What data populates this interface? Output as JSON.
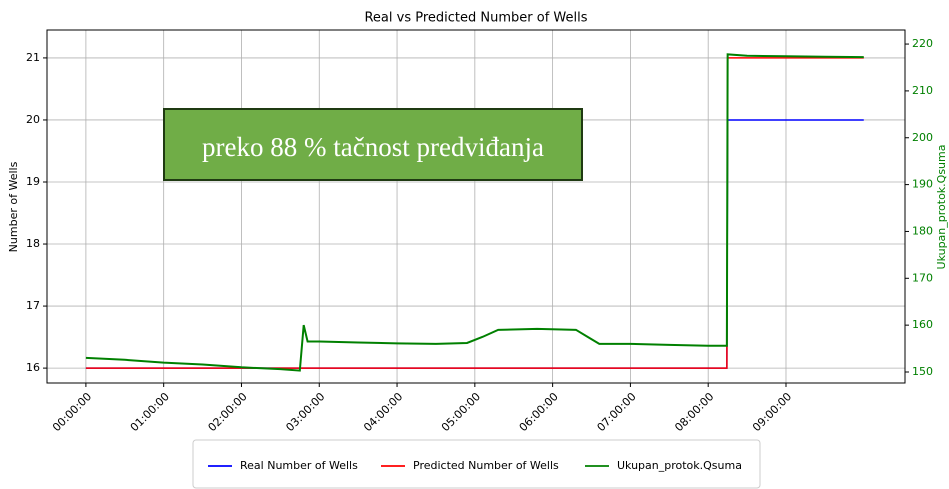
{
  "chart_data": {
    "type": "line",
    "title": "Real vs Predicted Number of Wells",
    "ylabel": "Number of Wells",
    "y2label": "Ukupan_protok.Qsuma",
    "annotation": "preko 88 % tačnost predviđanja",
    "x": [
      0,
      0.5,
      1,
      1.5,
      2,
      2.5,
      2.75,
      2.8,
      2.85,
      3,
      3.5,
      4,
      4.5,
      4.9,
      5.1,
      5.3,
      5.8,
      6.3,
      6.45,
      6.6,
      7,
      7.5,
      8,
      8.24,
      8.25,
      8.5,
      9,
      9.5,
      10
    ],
    "series": [
      {
        "name": "Real Number of Wells",
        "color": "#0000ff",
        "values": [
          16,
          16,
          16,
          16,
          16,
          16,
          16,
          16,
          16,
          16,
          16,
          16,
          16,
          16,
          16,
          16,
          16,
          16,
          16,
          16,
          16,
          16,
          16,
          16,
          20,
          20,
          20,
          20,
          20
        ]
      },
      {
        "name": "Predicted Number of Wells",
        "color": "#ff0000",
        "values": [
          16,
          16,
          16,
          16,
          16,
          16,
          16,
          16,
          16,
          16,
          16,
          16,
          16,
          16,
          16,
          16,
          16,
          16,
          16,
          16,
          16,
          16,
          16,
          16,
          21,
          21,
          21,
          21,
          21
        ]
      },
      {
        "name": "Ukupan_protok.Qsuma",
        "color": "#008000",
        "axis": "y2",
        "values": [
          153,
          152.6,
          152,
          151.6,
          151,
          150.6,
          150.3,
          160,
          156.5,
          156.5,
          156.3,
          156.1,
          156,
          156.2,
          157.5,
          159,
          159.2,
          159,
          157.5,
          156,
          156,
          155.8,
          155.6,
          155.6,
          217.8,
          217.5,
          217.4,
          217.3,
          217.2
        ]
      }
    ],
    "xlim": [
      -0.5,
      10.53
    ],
    "xticks": [
      {
        "value": 0,
        "label": "00:00:00"
      },
      {
        "value": 1,
        "label": "01:00:00"
      },
      {
        "value": 2,
        "label": "02:00:00"
      },
      {
        "value": 3,
        "label": "03:00:00"
      },
      {
        "value": 4,
        "label": "04:00:00"
      },
      {
        "value": 5,
        "label": "05:00:00"
      },
      {
        "value": 6,
        "label": "06:00:00"
      },
      {
        "value": 7,
        "label": "07:00:00"
      },
      {
        "value": 8,
        "label": "08:00:00"
      },
      {
        "value": 9,
        "label": "09:00:00"
      }
    ],
    "ylim": [
      15.76,
      21.45
    ],
    "yticks": [
      16,
      17,
      18,
      19,
      20,
      21
    ],
    "y2lim": [
      147.65,
      223
    ],
    "y2ticks": [
      150,
      160,
      170,
      180,
      190,
      200,
      210,
      220
    ],
    "grid": true,
    "legend": "bottom"
  }
}
